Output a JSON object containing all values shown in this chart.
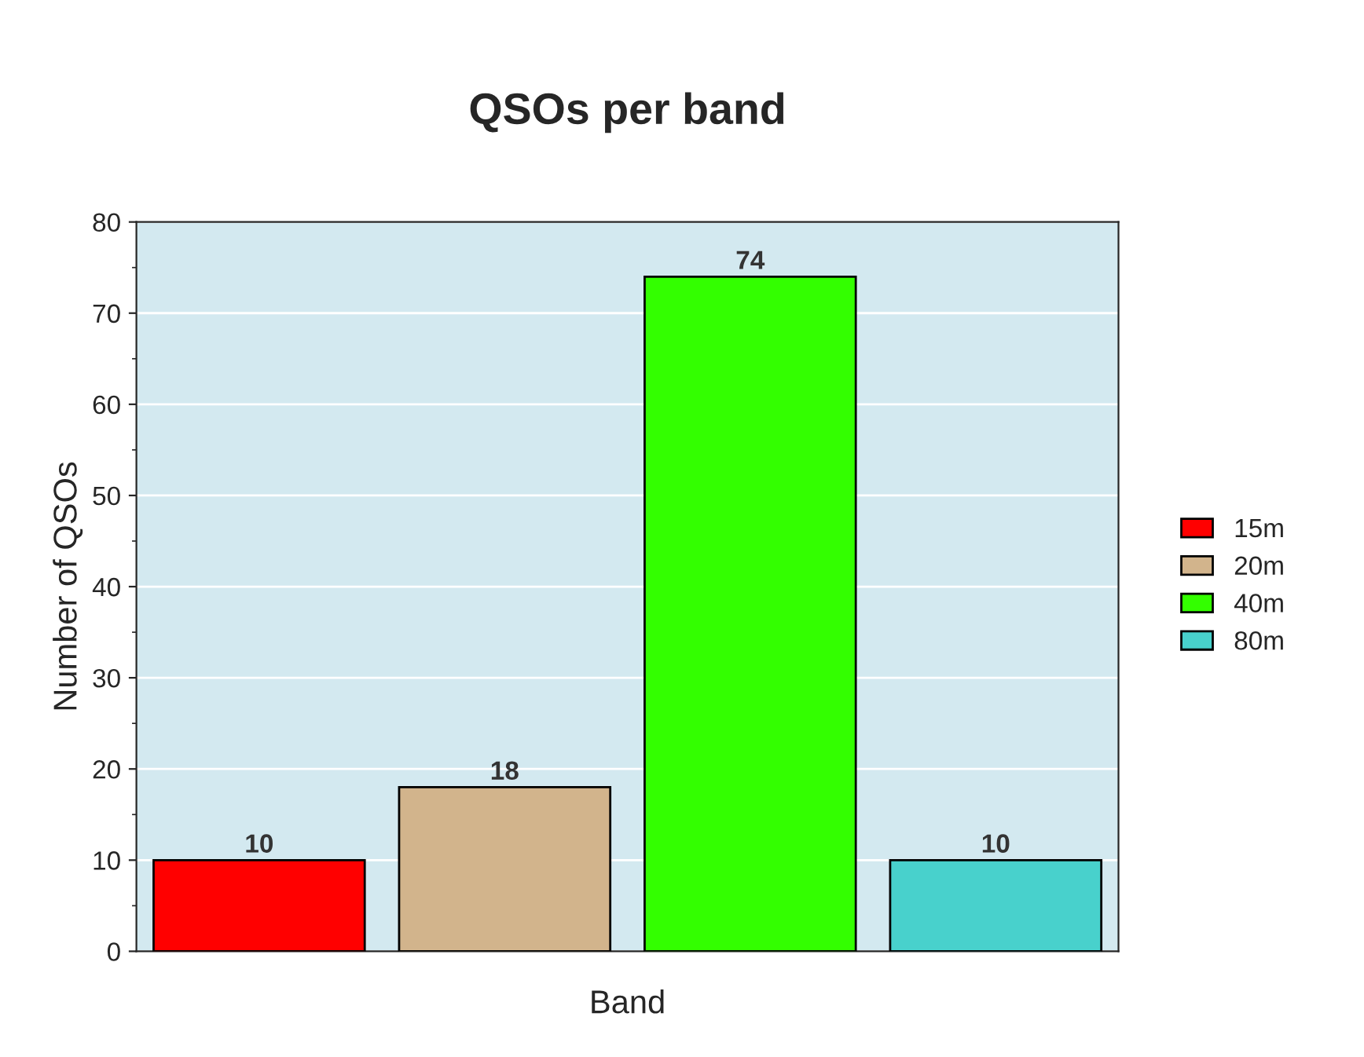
{
  "chart_data": {
    "type": "bar",
    "title": "QSOs per band",
    "xlabel": "Band",
    "ylabel": "Number of QSOs",
    "categories": [
      null,
      null,
      null,
      null
    ],
    "series": [
      {
        "name": "15m",
        "color": "#ff0000",
        "values": [
          10,
          null,
          null,
          null
        ]
      },
      {
        "name": "20m",
        "color": "#d2b48c",
        "values": [
          null,
          18,
          null,
          null
        ]
      },
      {
        "name": "40m",
        "color": "#33ff00",
        "values": [
          null,
          null,
          74,
          null
        ]
      },
      {
        "name": "80m",
        "color": "#48d1cc",
        "values": [
          null,
          null,
          null,
          10
        ]
      }
    ],
    "ylim": [
      0,
      80
    ],
    "yticks": [
      0,
      10,
      20,
      30,
      40,
      50,
      60,
      70,
      80
    ],
    "grid": "y",
    "legend": "right",
    "data_labels": true
  }
}
